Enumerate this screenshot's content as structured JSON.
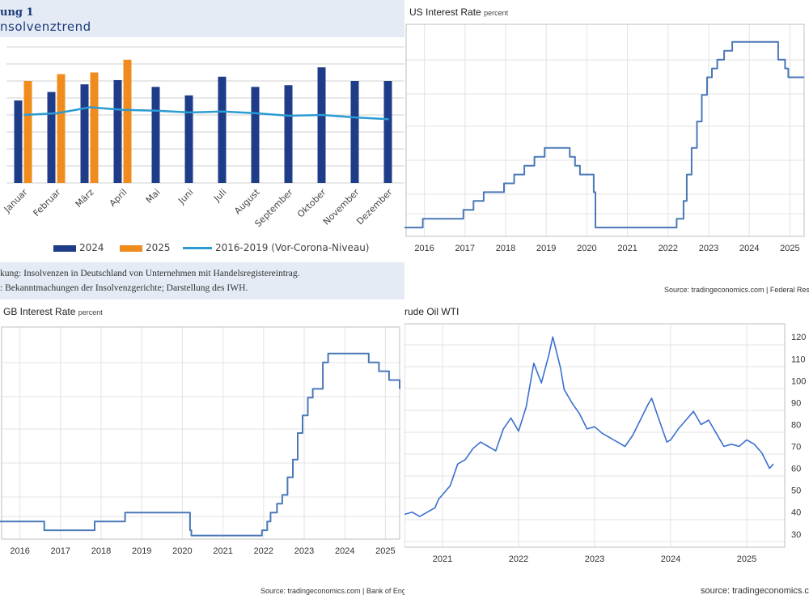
{
  "panel1": {
    "label": "ung 1",
    "title": "nsolvenztrend",
    "note1": "kung: Insolvenzen in Deutschland von Unternehmen mit Handelsregistereintrag.",
    "note2": ": Bekanntmachungen der Insolvenzgerichte; Darstellung des IWH."
  },
  "panel2": {
    "title": "US Interest Rate",
    "unit": "percent",
    "source": "Source: tradingeconomics.com | Federal Rese"
  },
  "panel3": {
    "title": "GB Interest Rate",
    "unit": "percent",
    "source": "Source: tradingeconomics.com | Bank of Engla"
  },
  "panel4": {
    "title": "rude Oil WTI",
    "source": "source: tradingeconomics.co"
  },
  "chart_data": [
    {
      "type": "bar",
      "categories": [
        "Januar",
        "Februar",
        "März",
        "April",
        "Mai",
        "Juni",
        "Juli",
        "August",
        "September",
        "Oktober",
        "November",
        "Dezember"
      ],
      "series": [
        {
          "name": "2024",
          "color": "#1f3c88",
          "values": [
            97,
            107,
            116,
            121,
            113,
            103,
            125,
            113,
            115,
            136,
            120,
            120
          ]
        },
        {
          "name": "2025",
          "color": "#f08c1e",
          "values": [
            120,
            128,
            130,
            145,
            null,
            null,
            null,
            null,
            null,
            null,
            null,
            null
          ]
        },
        {
          "name": "2016-2019 (Vor-Corona-Niveau)",
          "color": "#2b9bd3",
          "kind": "line",
          "values": [
            80,
            82,
            89,
            86,
            85,
            83,
            84,
            82,
            79,
            80,
            77,
            75
          ]
        }
      ],
      "ylim": [
        0,
        160
      ],
      "legend": "bottom"
    },
    {
      "type": "line",
      "series": [
        {
          "name": "US Interest Rate",
          "color": "#4a78b8",
          "values": [
            [
              2015.5,
              0.25
            ],
            [
              2015.96,
              0.25
            ],
            [
              2015.96,
              0.5
            ],
            [
              2016.96,
              0.5
            ],
            [
              2016.96,
              0.75
            ],
            [
              2017.21,
              0.75
            ],
            [
              2017.21,
              1.0
            ],
            [
              2017.46,
              1.0
            ],
            [
              2017.46,
              1.25
            ],
            [
              2017.96,
              1.25
            ],
            [
              2017.96,
              1.5
            ],
            [
              2018.21,
              1.5
            ],
            [
              2018.21,
              1.75
            ],
            [
              2018.46,
              1.75
            ],
            [
              2018.46,
              2.0
            ],
            [
              2018.71,
              2.0
            ],
            [
              2018.71,
              2.25
            ],
            [
              2018.96,
              2.25
            ],
            [
              2018.96,
              2.5
            ],
            [
              2019.58,
              2.5
            ],
            [
              2019.58,
              2.25
            ],
            [
              2019.71,
              2.25
            ],
            [
              2019.71,
              2.0
            ],
            [
              2019.83,
              2.0
            ],
            [
              2019.83,
              1.75
            ],
            [
              2020.17,
              1.75
            ],
            [
              2020.17,
              1.25
            ],
            [
              2020.21,
              1.25
            ],
            [
              2020.21,
              0.25
            ],
            [
              2022.21,
              0.25
            ],
            [
              2022.21,
              0.5
            ],
            [
              2022.38,
              0.5
            ],
            [
              2022.38,
              1.0
            ],
            [
              2022.46,
              1.0
            ],
            [
              2022.46,
              1.75
            ],
            [
              2022.58,
              1.75
            ],
            [
              2022.58,
              2.5
            ],
            [
              2022.71,
              2.5
            ],
            [
              2022.71,
              3.25
            ],
            [
              2022.83,
              3.25
            ],
            [
              2022.83,
              4.0
            ],
            [
              2022.96,
              4.0
            ],
            [
              2022.96,
              4.5
            ],
            [
              2023.08,
              4.5
            ],
            [
              2023.08,
              4.75
            ],
            [
              2023.21,
              4.75
            ],
            [
              2023.21,
              5.0
            ],
            [
              2023.38,
              5.0
            ],
            [
              2023.38,
              5.25
            ],
            [
              2023.58,
              5.25
            ],
            [
              2023.58,
              5.5
            ],
            [
              2024.71,
              5.5
            ],
            [
              2024.71,
              5.0
            ],
            [
              2024.88,
              5.0
            ],
            [
              2024.88,
              4.75
            ],
            [
              2024.96,
              4.75
            ],
            [
              2024.96,
              4.5
            ],
            [
              2025.35,
              4.5
            ]
          ]
        }
      ],
      "xticks": [
        "2016",
        "2017",
        "2018",
        "2019",
        "2020",
        "2021",
        "2022",
        "2023",
        "2024",
        "2025"
      ],
      "xlim": [
        2015.55,
        2025.35
      ],
      "ylim": [
        0,
        6
      ],
      "grid": true
    },
    {
      "type": "line",
      "series": [
        {
          "name": "GB Interest Rate",
          "color": "#4a78b8",
          "values": [
            [
              2015.5,
              0.5
            ],
            [
              2016.6,
              0.5
            ],
            [
              2016.6,
              0.25
            ],
            [
              2017.84,
              0.25
            ],
            [
              2017.84,
              0.5
            ],
            [
              2018.59,
              0.5
            ],
            [
              2018.59,
              0.75
            ],
            [
              2020.19,
              0.75
            ],
            [
              2020.19,
              0.25
            ],
            [
              2020.22,
              0.25
            ],
            [
              2020.22,
              0.1
            ],
            [
              2021.96,
              0.1
            ],
            [
              2021.96,
              0.25
            ],
            [
              2022.09,
              0.25
            ],
            [
              2022.09,
              0.5
            ],
            [
              2022.17,
              0.5
            ],
            [
              2022.17,
              0.75
            ],
            [
              2022.33,
              0.75
            ],
            [
              2022.33,
              1.0
            ],
            [
              2022.46,
              1.0
            ],
            [
              2022.46,
              1.25
            ],
            [
              2022.59,
              1.25
            ],
            [
              2022.59,
              1.75
            ],
            [
              2022.72,
              1.75
            ],
            [
              2022.72,
              2.25
            ],
            [
              2022.84,
              2.25
            ],
            [
              2022.84,
              3.0
            ],
            [
              2022.96,
              3.0
            ],
            [
              2022.96,
              3.5
            ],
            [
              2023.09,
              3.5
            ],
            [
              2023.09,
              4.0
            ],
            [
              2023.21,
              4.0
            ],
            [
              2023.21,
              4.25
            ],
            [
              2023.46,
              4.25
            ],
            [
              2023.46,
              5.0
            ],
            [
              2023.59,
              5.0
            ],
            [
              2023.59,
              5.25
            ],
            [
              2024.59,
              5.25
            ],
            [
              2024.59,
              5.0
            ],
            [
              2024.84,
              5.0
            ],
            [
              2024.84,
              4.75
            ],
            [
              2025.09,
              4.75
            ],
            [
              2025.09,
              4.5
            ],
            [
              2025.35,
              4.5
            ],
            [
              2025.35,
              4.25
            ]
          ]
        }
      ],
      "xticks": [
        "2016",
        "2017",
        "2018",
        "2019",
        "2020",
        "2021",
        "2022",
        "2023",
        "2024",
        "2025"
      ],
      "xlim": [
        2015.55,
        2025.35
      ],
      "ylim": [
        0,
        6
      ],
      "grid": true
    },
    {
      "type": "line",
      "series": [
        {
          "name": "Crude Oil WTI",
          "color": "#3a6fd0",
          "values": [
            [
              2020.5,
              39
            ],
            [
              2020.6,
              40
            ],
            [
              2020.7,
              38
            ],
            [
              2020.8,
              40
            ],
            [
              2020.9,
              42
            ],
            [
              2020.95,
              46
            ],
            [
              2021.0,
              48
            ],
            [
              2021.1,
              52
            ],
            [
              2021.2,
              62
            ],
            [
              2021.3,
              64
            ],
            [
              2021.4,
              69
            ],
            [
              2021.5,
              72
            ],
            [
              2021.6,
              70
            ],
            [
              2021.7,
              68
            ],
            [
              2021.8,
              78
            ],
            [
              2021.9,
              83
            ],
            [
              2022.0,
              77
            ],
            [
              2022.1,
              88
            ],
            [
              2022.2,
              108
            ],
            [
              2022.3,
              99
            ],
            [
              2022.4,
              112
            ],
            [
              2022.45,
              120
            ],
            [
              2022.55,
              106
            ],
            [
              2022.6,
              96
            ],
            [
              2022.7,
              90
            ],
            [
              2022.8,
              85
            ],
            [
              2022.9,
              78
            ],
            [
              2023.0,
              79
            ],
            [
              2023.1,
              76
            ],
            [
              2023.2,
              74
            ],
            [
              2023.3,
              72
            ],
            [
              2023.4,
              70
            ],
            [
              2023.5,
              75
            ],
            [
              2023.6,
              82
            ],
            [
              2023.7,
              89
            ],
            [
              2023.75,
              92
            ],
            [
              2023.85,
              82
            ],
            [
              2023.95,
              72
            ],
            [
              2024.0,
              73
            ],
            [
              2024.1,
              78
            ],
            [
              2024.2,
              82
            ],
            [
              2024.3,
              86
            ],
            [
              2024.4,
              80
            ],
            [
              2024.5,
              82
            ],
            [
              2024.6,
              76
            ],
            [
              2024.7,
              70
            ],
            [
              2024.8,
              71
            ],
            [
              2024.9,
              70
            ],
            [
              2025.0,
              73
            ],
            [
              2025.1,
              71
            ],
            [
              2025.2,
              67
            ],
            [
              2025.3,
              60
            ],
            [
              2025.35,
              62
            ]
          ]
        }
      ],
      "xticks": [
        "2021",
        "2022",
        "2023",
        "2024",
        "2025"
      ],
      "yticks": [
        "30",
        "40",
        "50",
        "60",
        "70",
        "80",
        "90",
        "100",
        "110",
        "120"
      ],
      "xlim": [
        2020.5,
        2025.5
      ],
      "ylim": [
        24,
        126
      ],
      "grid": true
    }
  ]
}
